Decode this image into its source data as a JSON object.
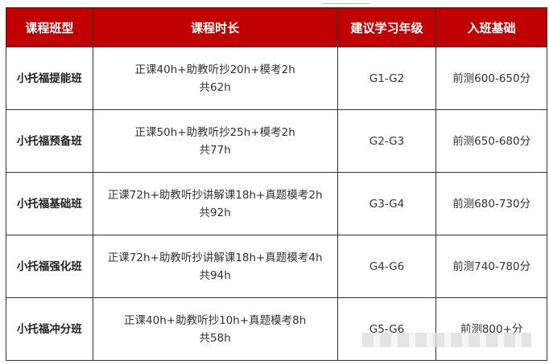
{
  "headers": [
    "课程班型",
    "课程时长",
    "建议学习年级",
    "入班基础"
  ],
  "rows": [
    {
      "name": "小托福提能班",
      "duration": "正课40h+助教听抄20h+模考2h",
      "total": "共62h",
      "grade": "G1-G2",
      "basis": "前测600-650分"
    },
    {
      "name": "小托福预备班",
      "duration": "正课50h+助教听抄25h+模考2h",
      "total": "共77h",
      "grade": "G2-G3",
      "basis": "前测650-680分"
    },
    {
      "name": "小托福基础班",
      "duration": "正课72h+助教听抄讲解课18h+真题模考2h",
      "total": "共92h",
      "grade": "G3-G4",
      "basis": "前测680-730分"
    },
    {
      "name": "小托福强化班",
      "duration": "正课72h+助教听抄讲解课18h+真题模考4h",
      "total": "共94h",
      "grade": "G4-G6",
      "basis": "前测740-780分"
    },
    {
      "name": "小托福冲分班",
      "duration": "正课40h+助教听抄10h+真题模考8h",
      "total": "共58h",
      "grade": "G5-G6",
      "basis": "前测800+分"
    }
  ],
  "colors": {
    "header_bg": "#c00000",
    "header_text": "#ffffff"
  }
}
